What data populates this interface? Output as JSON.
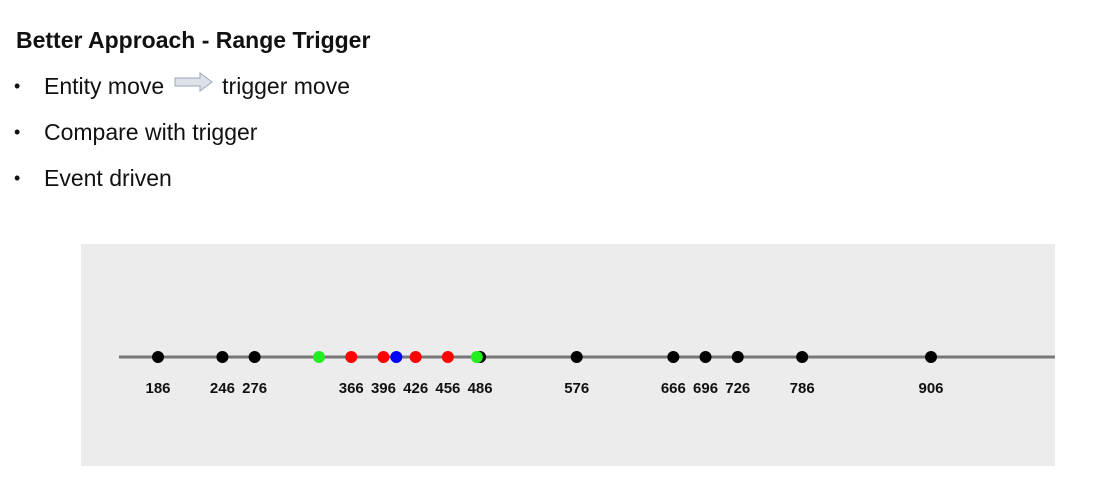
{
  "title": "Better Approach - Range Trigger",
  "bullets": [
    {
      "bullet": "•",
      "text": "Entity move",
      "arrow_icon": "right-arrow-icon",
      "text_after": "trigger move"
    },
    {
      "bullet": "•",
      "text": "Compare with trigger"
    },
    {
      "bullet": "•",
      "text": "Event driven"
    }
  ],
  "diagram": {
    "axis_range": [
      90,
      1060
    ],
    "colors": {
      "background": "#ececec",
      "line": "#777777",
      "black": "#000000",
      "red": "#ff0000",
      "green": "#22ee22",
      "blue": "#0000ff",
      "arrow": "#d0d6e0"
    },
    "points": [
      {
        "value": 186,
        "label": "186",
        "color": "black"
      },
      {
        "value": 246,
        "label": "246",
        "color": "black"
      },
      {
        "value": 276,
        "label": "276",
        "color": "black"
      },
      {
        "value": 336,
        "label": "",
        "color": "green"
      },
      {
        "value": 366,
        "label": "366",
        "color": "red"
      },
      {
        "value": 396,
        "label": "396",
        "color": "red"
      },
      {
        "value": 408,
        "label": "",
        "color": "blue"
      },
      {
        "value": 426,
        "label": "426",
        "color": "red"
      },
      {
        "value": 456,
        "label": "456",
        "color": "red"
      },
      {
        "value": 486,
        "label": "",
        "color": "black"
      },
      {
        "value": 483,
        "label": "486",
        "color": "green"
      },
      {
        "value": 576,
        "label": "576",
        "color": "black"
      },
      {
        "value": 666,
        "label": "666",
        "color": "black"
      },
      {
        "value": 696,
        "label": "696",
        "color": "black"
      },
      {
        "value": 726,
        "label": "726",
        "color": "black"
      },
      {
        "value": 786,
        "label": "786",
        "color": "black"
      },
      {
        "value": 906,
        "label": "906",
        "color": "black"
      }
    ]
  }
}
